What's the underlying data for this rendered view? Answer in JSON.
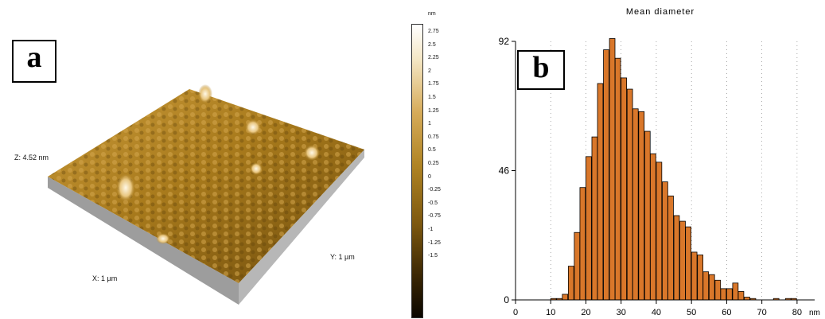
{
  "panel_a": {
    "label": "a",
    "z_label": "Z: 4.52 nm",
    "x_label": "X: 1 µm",
    "y_label": "Y: 1 µm",
    "colorbar": {
      "unit": "nm",
      "ticks": [
        "2.75",
        "2.5",
        "2.25",
        "2",
        "1.75",
        "1.5",
        "1.25",
        "1",
        "0.75",
        "0.5",
        "0.25",
        "0",
        "-0.25",
        "-0.5",
        "-0.75",
        "-1",
        "-1.25",
        "-1.5"
      ],
      "colors": {
        "low": "#1a1000",
        "mid": "#a07010",
        "high": "#ffffff"
      }
    }
  },
  "panel_b": {
    "label": "b",
    "bar_color": "#d9772a"
  },
  "chart_data": {
    "type": "bar",
    "title": "Mean diameter",
    "xlabel": "nm",
    "ylabel": "",
    "xlim": [
      0,
      85
    ],
    "ylim": [
      0,
      92
    ],
    "x_ticks": [
      0,
      10,
      20,
      30,
      40,
      50,
      60,
      70,
      80
    ],
    "y_ticks": [
      0,
      46,
      92
    ],
    "grid": "dotted vertical",
    "bin_width": 1.67,
    "x": [
      10.0,
      11.7,
      13.3,
      15.0,
      16.7,
      18.3,
      20.0,
      21.7,
      23.3,
      25.0,
      26.7,
      28.3,
      30.0,
      31.7,
      33.3,
      35.0,
      36.7,
      38.3,
      40.0,
      41.7,
      43.3,
      45.0,
      46.7,
      48.3,
      50.0,
      51.7,
      53.3,
      55.0,
      56.7,
      58.3,
      60.0,
      61.7,
      63.3,
      65.0,
      66.7,
      73.3,
      76.7,
      78.3
    ],
    "values": [
      0.5,
      0.5,
      2,
      12,
      24,
      40,
      51,
      58,
      77,
      89,
      93,
      86,
      79,
      75,
      68,
      67,
      60,
      52,
      49,
      42,
      37,
      30,
      28,
      26,
      17,
      16,
      10,
      9,
      7,
      4,
      4,
      6,
      3,
      1,
      0.5,
      0.5,
      0.5,
      0.5
    ]
  }
}
